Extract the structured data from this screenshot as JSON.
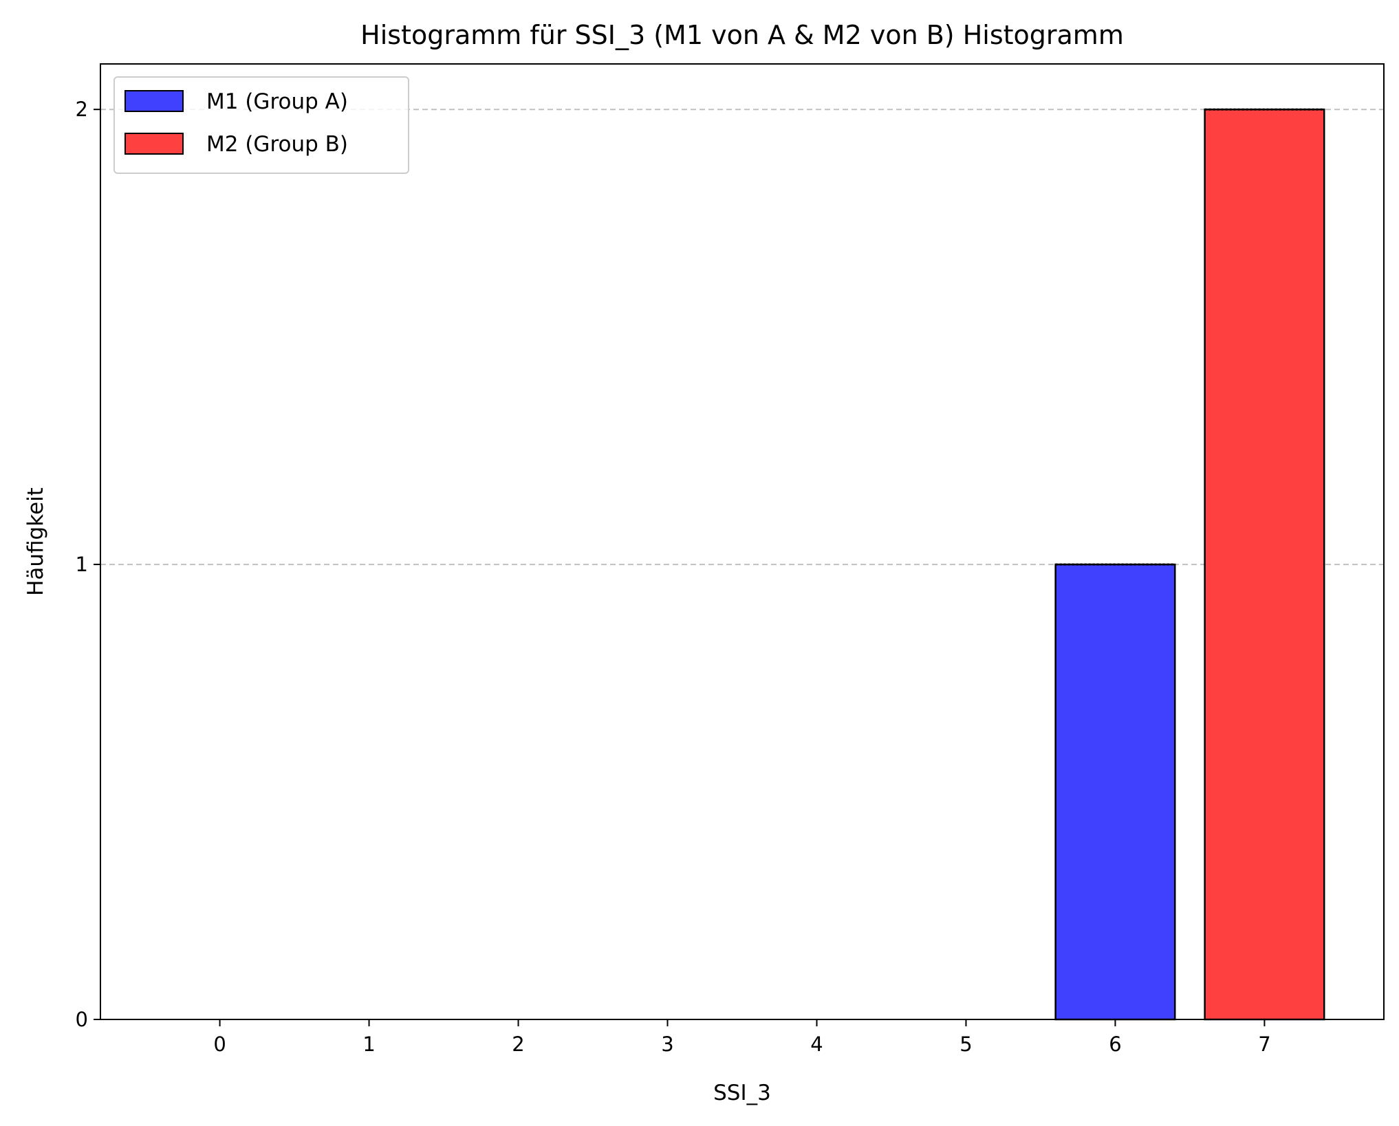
{
  "chart_data": {
    "type": "bar",
    "title": "Histogramm für SSI_3 (M1 von A & M2 von B) Histogramm",
    "xlabel": "SSI_3",
    "ylabel": "Häufigkeit",
    "categories": [
      "0",
      "1",
      "2",
      "3",
      "4",
      "5",
      "6",
      "7"
    ],
    "yticks": [
      "0",
      "1",
      "2"
    ],
    "ylim": [
      0,
      2.1
    ],
    "grid": "y, dashed",
    "legend_position": "top-left",
    "series": [
      {
        "name": "M1 (Group A)",
        "color": "#4040ff",
        "values": [
          0,
          0,
          0,
          0,
          0,
          0,
          1,
          0
        ]
      },
      {
        "name": "M2 (Group B)",
        "color": "#ff4040",
        "values": [
          0,
          0,
          0,
          0,
          0,
          0,
          0,
          2
        ]
      }
    ]
  }
}
